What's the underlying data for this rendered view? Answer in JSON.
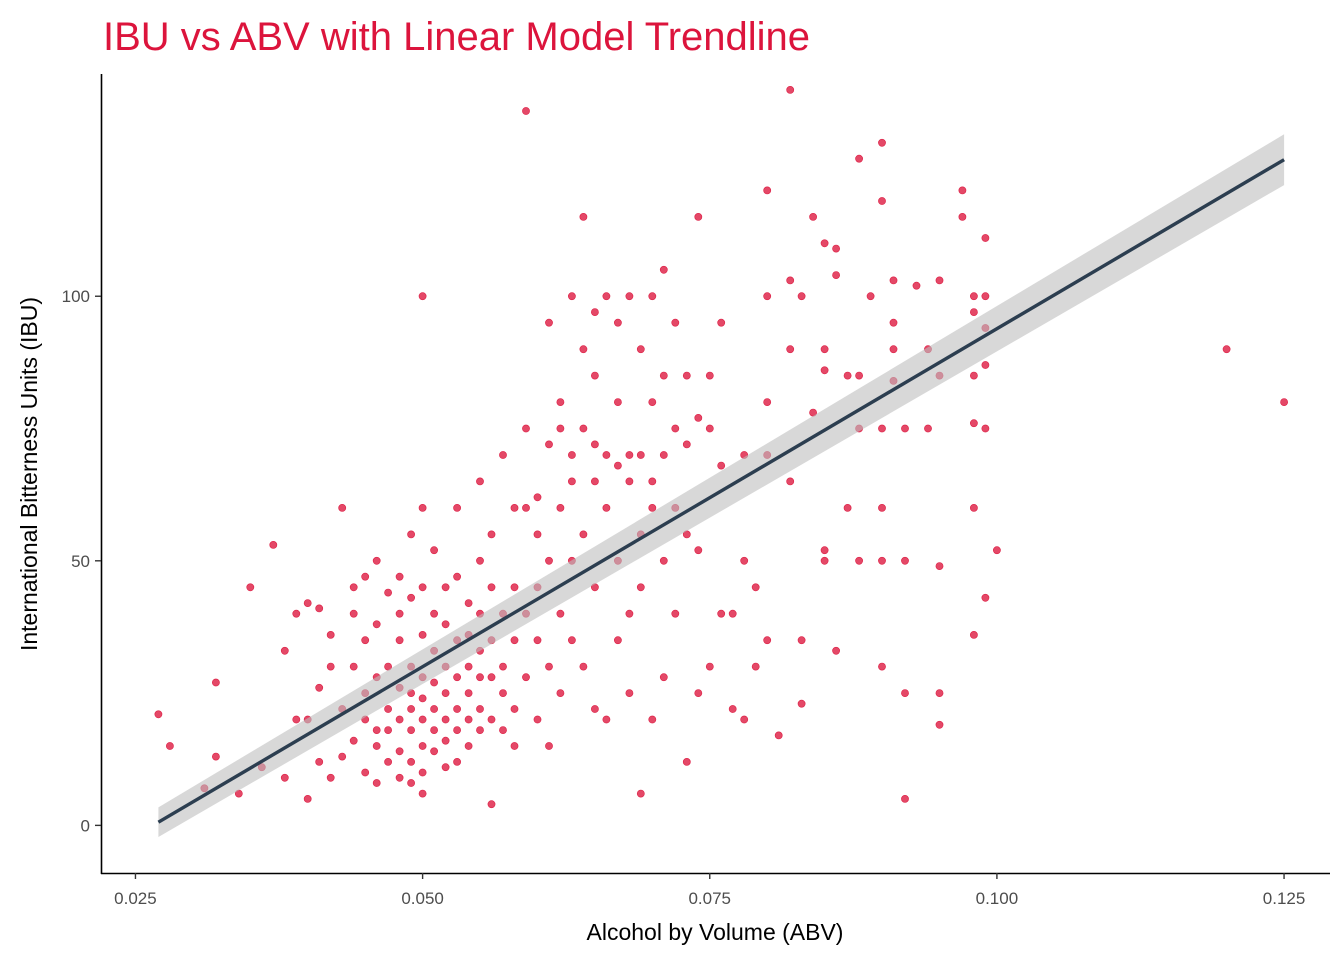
{
  "chart_data": {
    "type": "scatter",
    "title": "IBU vs ABV with Linear Model Trendline",
    "xlabel": "Alcohol by Volume (ABV)",
    "ylabel": "International Bitterness Units (IBU)",
    "xlim": [
      0.022,
      0.129
    ],
    "ylim": [
      -9,
      142
    ],
    "x_ticks": [
      0.025,
      0.05,
      0.075,
      0.1,
      0.125
    ],
    "x_tick_labels": [
      "0.025",
      "0.050",
      "0.075",
      "0.100",
      "0.125"
    ],
    "y_ticks": [
      0,
      50,
      100
    ],
    "y_tick_labels": [
      "0",
      "50",
      "100"
    ],
    "grid": false,
    "legend": "none",
    "colors": {
      "title": "#DC143C",
      "points": "#DC143C",
      "trend": "#2C3E50",
      "band": "#BEBEBE"
    },
    "trendline": {
      "x": [
        0.027,
        0.125
      ],
      "y": [
        0.6,
        125.8
      ],
      "band_halfwidth": [
        2.8,
        4.8
      ]
    },
    "series": [
      {
        "points": [
          [
            0.027,
            21
          ],
          [
            0.028,
            15
          ],
          [
            0.031,
            7
          ],
          [
            0.032,
            13
          ],
          [
            0.032,
            27
          ],
          [
            0.034,
            6
          ],
          [
            0.035,
            45
          ],
          [
            0.037,
            53
          ],
          [
            0.036,
            11
          ],
          [
            0.038,
            33
          ],
          [
            0.038,
            9
          ],
          [
            0.039,
            20
          ],
          [
            0.039,
            40
          ],
          [
            0.04,
            42
          ],
          [
            0.04,
            20
          ],
          [
            0.04,
            5
          ],
          [
            0.041,
            12
          ],
          [
            0.041,
            26
          ],
          [
            0.041,
            41
          ],
          [
            0.042,
            9
          ],
          [
            0.042,
            30
          ],
          [
            0.042,
            36
          ],
          [
            0.043,
            60
          ],
          [
            0.043,
            13
          ],
          [
            0.043,
            22
          ],
          [
            0.044,
            45
          ],
          [
            0.044,
            30
          ],
          [
            0.044,
            16
          ],
          [
            0.044,
            40
          ],
          [
            0.045,
            10
          ],
          [
            0.045,
            20
          ],
          [
            0.045,
            35
          ],
          [
            0.045,
            47
          ],
          [
            0.045,
            25
          ],
          [
            0.046,
            18
          ],
          [
            0.046,
            50
          ],
          [
            0.046,
            38
          ],
          [
            0.046,
            15
          ],
          [
            0.046,
            8
          ],
          [
            0.046,
            28
          ],
          [
            0.047,
            22
          ],
          [
            0.047,
            44
          ],
          [
            0.047,
            12
          ],
          [
            0.047,
            30
          ],
          [
            0.047,
            18
          ],
          [
            0.048,
            20
          ],
          [
            0.048,
            35
          ],
          [
            0.048,
            26
          ],
          [
            0.048,
            14
          ],
          [
            0.048,
            47
          ],
          [
            0.048,
            9
          ],
          [
            0.048,
            40
          ],
          [
            0.049,
            22
          ],
          [
            0.049,
            18
          ],
          [
            0.049,
            30
          ],
          [
            0.049,
            55
          ],
          [
            0.049,
            12
          ],
          [
            0.049,
            25
          ],
          [
            0.049,
            43
          ],
          [
            0.049,
            8
          ],
          [
            0.05,
            100
          ],
          [
            0.05,
            20
          ],
          [
            0.05,
            15
          ],
          [
            0.05,
            28
          ],
          [
            0.05,
            36
          ],
          [
            0.05,
            45
          ],
          [
            0.05,
            60
          ],
          [
            0.05,
            10
          ],
          [
            0.05,
            6
          ],
          [
            0.05,
            24
          ],
          [
            0.051,
            18
          ],
          [
            0.051,
            33
          ],
          [
            0.051,
            22
          ],
          [
            0.051,
            40
          ],
          [
            0.051,
            27
          ],
          [
            0.051,
            14
          ],
          [
            0.051,
            52
          ],
          [
            0.052,
            20
          ],
          [
            0.052,
            30
          ],
          [
            0.052,
            16
          ],
          [
            0.052,
            25
          ],
          [
            0.052,
            38
          ],
          [
            0.052,
            45
          ],
          [
            0.052,
            11
          ],
          [
            0.053,
            22
          ],
          [
            0.053,
            35
          ],
          [
            0.053,
            18
          ],
          [
            0.053,
            28
          ],
          [
            0.053,
            47
          ],
          [
            0.053,
            60
          ],
          [
            0.053,
            12
          ],
          [
            0.054,
            20
          ],
          [
            0.054,
            30
          ],
          [
            0.054,
            42
          ],
          [
            0.054,
            25
          ],
          [
            0.054,
            15
          ],
          [
            0.054,
            36
          ],
          [
            0.055,
            50
          ],
          [
            0.055,
            40
          ],
          [
            0.055,
            28
          ],
          [
            0.055,
            22
          ],
          [
            0.055,
            18
          ],
          [
            0.055,
            33
          ],
          [
            0.055,
            65
          ],
          [
            0.056,
            4
          ],
          [
            0.056,
            20
          ],
          [
            0.056,
            35
          ],
          [
            0.056,
            45
          ],
          [
            0.056,
            28
          ],
          [
            0.056,
            55
          ],
          [
            0.057,
            70
          ],
          [
            0.057,
            40
          ],
          [
            0.057,
            30
          ],
          [
            0.057,
            18
          ],
          [
            0.057,
            25
          ],
          [
            0.058,
            60
          ],
          [
            0.058,
            45
          ],
          [
            0.058,
            35
          ],
          [
            0.058,
            22
          ],
          [
            0.058,
            15
          ],
          [
            0.059,
            135
          ],
          [
            0.059,
            75
          ],
          [
            0.059,
            60
          ],
          [
            0.059,
            40
          ],
          [
            0.059,
            28
          ],
          [
            0.06,
            55
          ],
          [
            0.06,
            45
          ],
          [
            0.06,
            35
          ],
          [
            0.06,
            20
          ],
          [
            0.06,
            62
          ],
          [
            0.061,
            95
          ],
          [
            0.061,
            72
          ],
          [
            0.061,
            50
          ],
          [
            0.061,
            30
          ],
          [
            0.061,
            15
          ],
          [
            0.062,
            80
          ],
          [
            0.062,
            75
          ],
          [
            0.062,
            60
          ],
          [
            0.062,
            40
          ],
          [
            0.062,
            25
          ],
          [
            0.063,
            100
          ],
          [
            0.063,
            70
          ],
          [
            0.063,
            65
          ],
          [
            0.063,
            50
          ],
          [
            0.063,
            35
          ],
          [
            0.064,
            115
          ],
          [
            0.064,
            90
          ],
          [
            0.064,
            75
          ],
          [
            0.064,
            55
          ],
          [
            0.064,
            30
          ],
          [
            0.065,
            97
          ],
          [
            0.065,
            85
          ],
          [
            0.065,
            72
          ],
          [
            0.065,
            65
          ],
          [
            0.065,
            45
          ],
          [
            0.065,
            22
          ],
          [
            0.066,
            100
          ],
          [
            0.066,
            70
          ],
          [
            0.066,
            60
          ],
          [
            0.066,
            20
          ],
          [
            0.067,
            95
          ],
          [
            0.067,
            80
          ],
          [
            0.067,
            68
          ],
          [
            0.067,
            50
          ],
          [
            0.067,
            35
          ],
          [
            0.068,
            100
          ],
          [
            0.068,
            70
          ],
          [
            0.068,
            65
          ],
          [
            0.068,
            40
          ],
          [
            0.068,
            25
          ],
          [
            0.069,
            6
          ],
          [
            0.069,
            90
          ],
          [
            0.069,
            70
          ],
          [
            0.069,
            55
          ],
          [
            0.069,
            45
          ],
          [
            0.07,
            100
          ],
          [
            0.07,
            80
          ],
          [
            0.07,
            65
          ],
          [
            0.07,
            60
          ],
          [
            0.07,
            20
          ],
          [
            0.071,
            105
          ],
          [
            0.071,
            85
          ],
          [
            0.071,
            70
          ],
          [
            0.071,
            50
          ],
          [
            0.071,
            28
          ],
          [
            0.072,
            95
          ],
          [
            0.072,
            75
          ],
          [
            0.072,
            60
          ],
          [
            0.072,
            40
          ],
          [
            0.073,
            85
          ],
          [
            0.073,
            72
          ],
          [
            0.073,
            55
          ],
          [
            0.073,
            12
          ],
          [
            0.074,
            115
          ],
          [
            0.074,
            77
          ],
          [
            0.074,
            52
          ],
          [
            0.074,
            25
          ],
          [
            0.075,
            85
          ],
          [
            0.075,
            75
          ],
          [
            0.075,
            30
          ],
          [
            0.076,
            95
          ],
          [
            0.076,
            68
          ],
          [
            0.076,
            40
          ],
          [
            0.077,
            40
          ],
          [
            0.077,
            22
          ],
          [
            0.078,
            70
          ],
          [
            0.078,
            50
          ],
          [
            0.078,
            20
          ],
          [
            0.079,
            45
          ],
          [
            0.079,
            30
          ],
          [
            0.08,
            120
          ],
          [
            0.08,
            100
          ],
          [
            0.08,
            80
          ],
          [
            0.08,
            70
          ],
          [
            0.08,
            35
          ],
          [
            0.081,
            17
          ],
          [
            0.082,
            139
          ],
          [
            0.082,
            103
          ],
          [
            0.082,
            90
          ],
          [
            0.082,
            65
          ],
          [
            0.083,
            100
          ],
          [
            0.083,
            35
          ],
          [
            0.083,
            23
          ],
          [
            0.084,
            115
          ],
          [
            0.084,
            78
          ],
          [
            0.085,
            110
          ],
          [
            0.085,
            90
          ],
          [
            0.085,
            86
          ],
          [
            0.085,
            52
          ],
          [
            0.085,
            50
          ],
          [
            0.086,
            104
          ],
          [
            0.086,
            109
          ],
          [
            0.086,
            33
          ],
          [
            0.087,
            85
          ],
          [
            0.087,
            60
          ],
          [
            0.088,
            85
          ],
          [
            0.088,
            75
          ],
          [
            0.088,
            50
          ],
          [
            0.088,
            126
          ],
          [
            0.089,
            100
          ],
          [
            0.09,
            129
          ],
          [
            0.09,
            118
          ],
          [
            0.09,
            75
          ],
          [
            0.09,
            60
          ],
          [
            0.09,
            50
          ],
          [
            0.09,
            30
          ],
          [
            0.091,
            103
          ],
          [
            0.091,
            95
          ],
          [
            0.091,
            90
          ],
          [
            0.091,
            84
          ],
          [
            0.092,
            75
          ],
          [
            0.092,
            50
          ],
          [
            0.092,
            25
          ],
          [
            0.092,
            5
          ],
          [
            0.093,
            102
          ],
          [
            0.094,
            90
          ],
          [
            0.094,
            75
          ],
          [
            0.095,
            103
          ],
          [
            0.095,
            85
          ],
          [
            0.095,
            49
          ],
          [
            0.095,
            25
          ],
          [
            0.095,
            19
          ],
          [
            0.097,
            120
          ],
          [
            0.097,
            115
          ],
          [
            0.098,
            100
          ],
          [
            0.098,
            97
          ],
          [
            0.098,
            85
          ],
          [
            0.098,
            76
          ],
          [
            0.098,
            60
          ],
          [
            0.098,
            36
          ],
          [
            0.099,
            111
          ],
          [
            0.099,
            100
          ],
          [
            0.099,
            94
          ],
          [
            0.099,
            87
          ],
          [
            0.099,
            75
          ],
          [
            0.099,
            43
          ],
          [
            0.1,
            52
          ],
          [
            0.12,
            90
          ],
          [
            0.125,
            80
          ]
        ]
      }
    ]
  }
}
